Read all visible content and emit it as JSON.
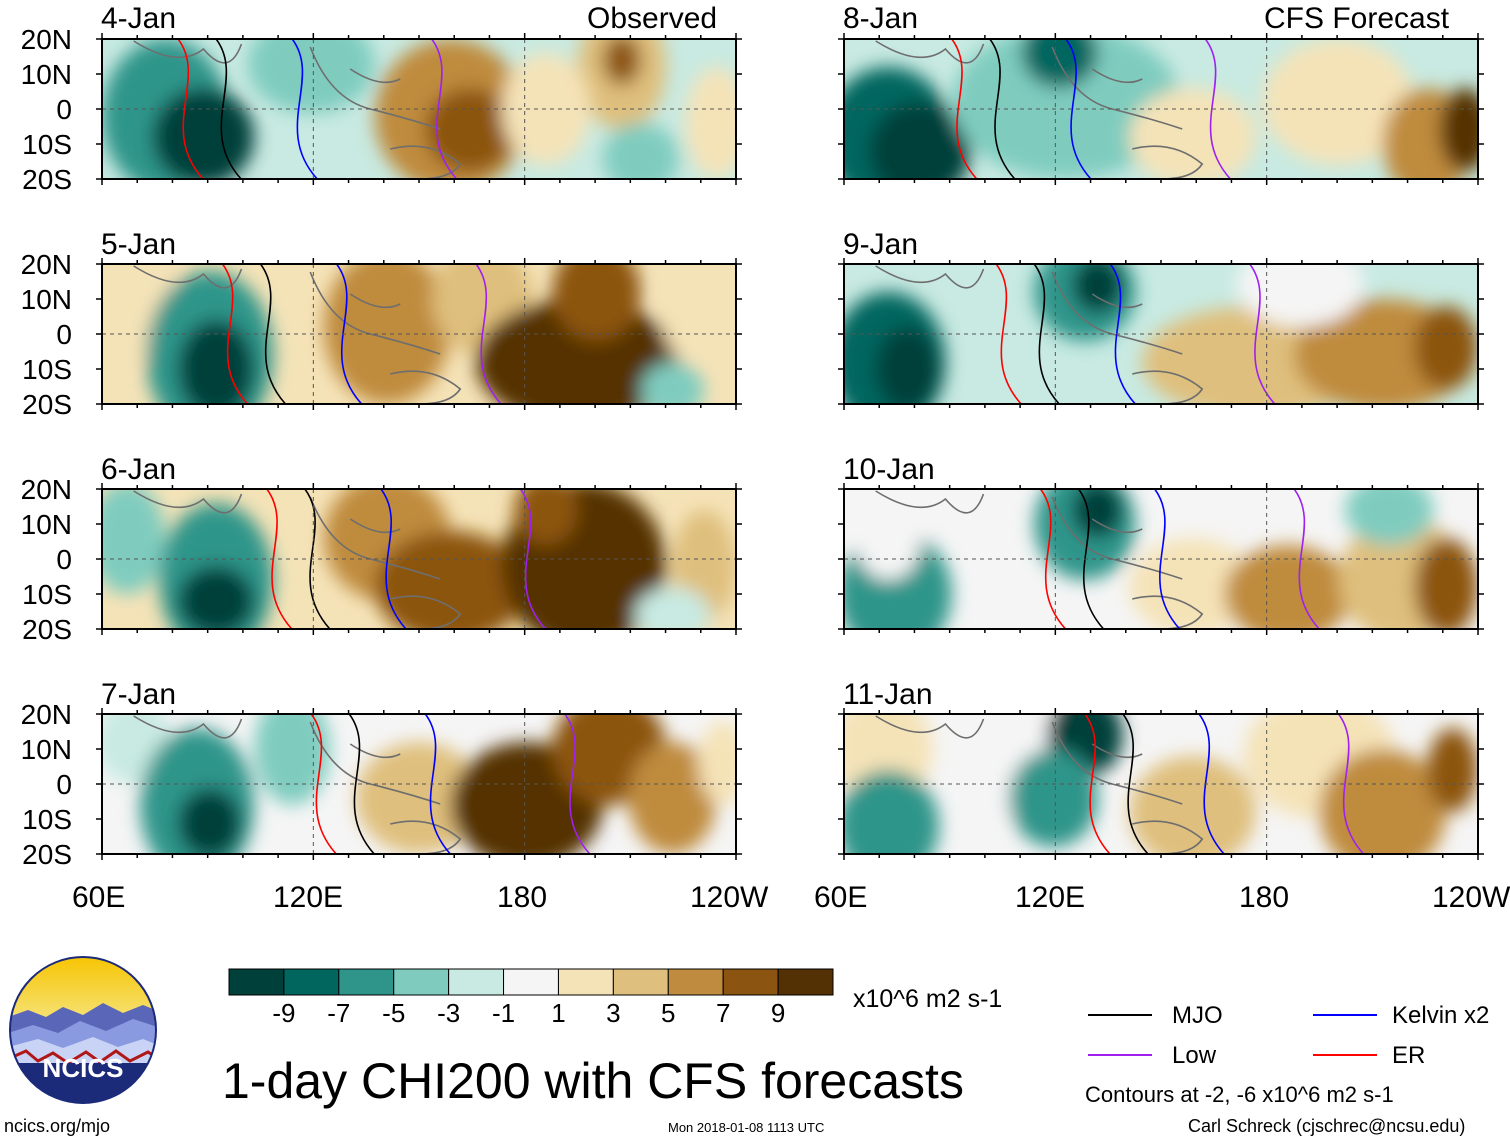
{
  "title": "1-day CHI200 with CFS forecasts",
  "column_headers": {
    "observed": "Observed",
    "forecast": "CFS Forecast"
  },
  "observed_panels": [
    {
      "date": "4-Jan"
    },
    {
      "date": "5-Jan"
    },
    {
      "date": "6-Jan"
    },
    {
      "date": "7-Jan"
    }
  ],
  "forecast_panels": [
    {
      "date": "8-Jan"
    },
    {
      "date": "9-Jan"
    },
    {
      "date": "10-Jan"
    },
    {
      "date": "11-Jan"
    }
  ],
  "lat_labels": [
    "20N",
    "10N",
    "0",
    "10S",
    "20S"
  ],
  "lon_labels": [
    "60E",
    "120E",
    "180",
    "120W"
  ],
  "colorbar": {
    "unit": "x10^6 m2 s-1",
    "ticks": [
      "-9",
      "-7",
      "-5",
      "-3",
      "-1",
      "1",
      "3",
      "5",
      "7",
      "9"
    ],
    "colors": [
      "#00403a",
      "#00665e",
      "#2f958a",
      "#7fccbf",
      "#c8eae2",
      "#f5f5f5",
      "#f5e3b8",
      "#dfbf7d",
      "#bf8b3e",
      "#8c5411",
      "#543005"
    ]
  },
  "legend": {
    "items": [
      {
        "label": "MJO",
        "color": "#000000"
      },
      {
        "label": "Kelvin x2",
        "color": "#0000ff"
      },
      {
        "label": "Low",
        "color": "#a020f0"
      },
      {
        "label": "ER",
        "color": "#ff0000"
      }
    ],
    "contour_note": "Contours at -2, -6 x10^6 m2 s-1"
  },
  "logo_text": "NCICS",
  "footer": {
    "left": "ncics.org/mjo",
    "center": "Mon 2018-01-08 1113 UTC",
    "right": "Carl Schreck (cjschrec@ncsu.edu)"
  }
}
